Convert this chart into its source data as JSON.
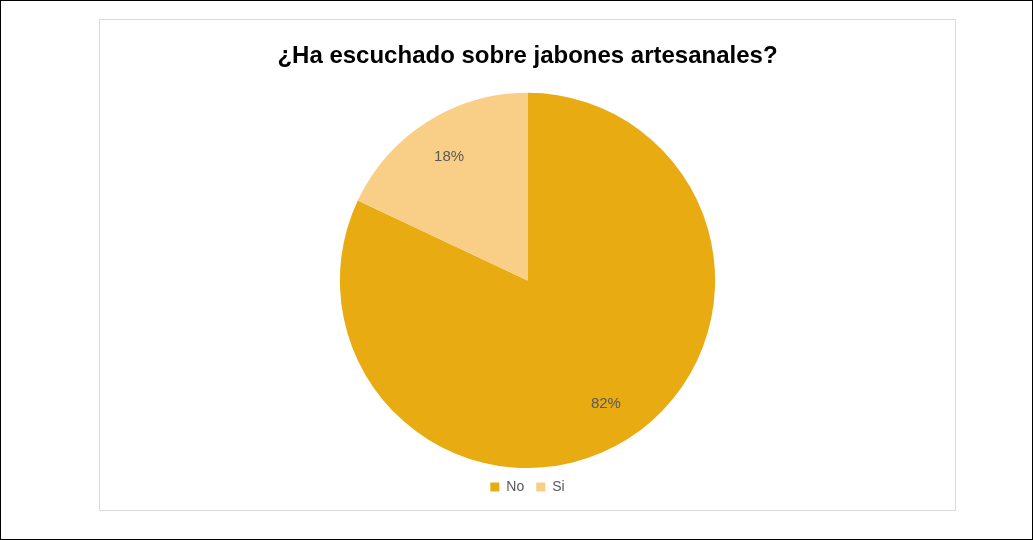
{
  "chart_data": {
    "type": "pie",
    "title": "¿Ha escuchado sobre jabones artesanales?",
    "categories": [
      "No",
      "Si"
    ],
    "values": [
      82,
      18
    ],
    "colors": [
      "#e8ab12",
      "#f9cf88"
    ],
    "value_labels": [
      "82%",
      "18%"
    ],
    "legend": "bottom"
  }
}
